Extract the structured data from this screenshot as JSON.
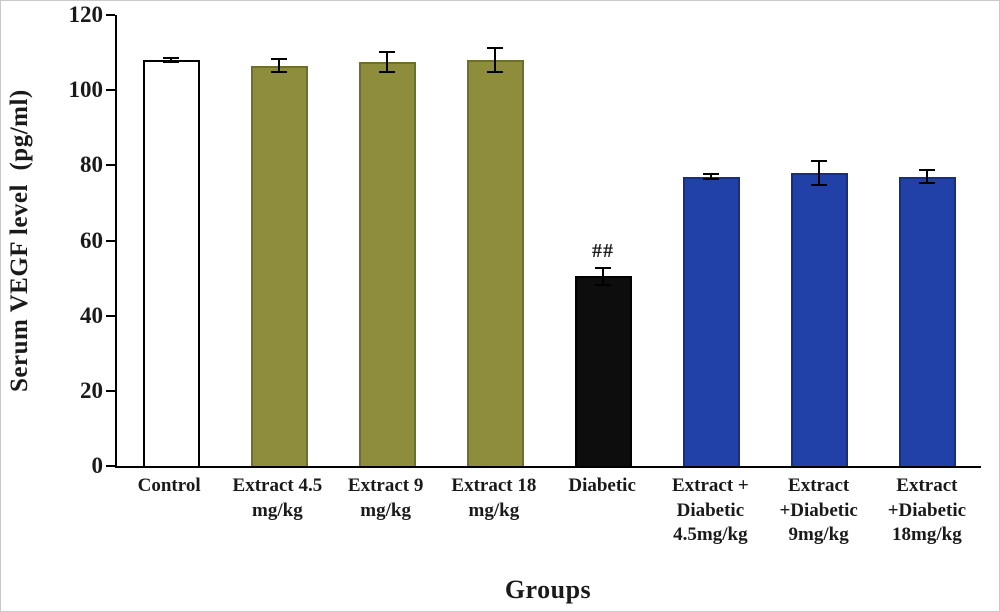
{
  "chart_data": {
    "type": "bar",
    "title": "",
    "xlabel": "Groups",
    "ylabel": "Serum VEGF level  (pg/ml)",
    "ylim": [
      0,
      120
    ],
    "yticks": [
      0,
      20,
      40,
      60,
      80,
      100,
      120
    ],
    "grid": false,
    "legend": "none",
    "categories": [
      [
        "Control"
      ],
      [
        "Extract 4.5",
        "mg/kg"
      ],
      [
        "Extract 9",
        "mg/kg"
      ],
      [
        "Extract 18",
        "mg/kg"
      ],
      [
        "Diabetic"
      ],
      [
        "Extract +",
        "Diabetic",
        "4.5mg/kg"
      ],
      [
        "Extract",
        "+Diabetic",
        "9mg/kg"
      ],
      [
        "Extract",
        "+Diabetic",
        "18mg/kg"
      ]
    ],
    "values": [
      108,
      106.5,
      107.5,
      108,
      50.5,
      77,
      78,
      77
    ],
    "errors": [
      0.8,
      2,
      3,
      3.5,
      2.5,
      1,
      3.5,
      2
    ],
    "bar_colors": [
      "#ffffff",
      "#8d8d3c",
      "#8d8d3c",
      "#8d8d3c",
      "#0d0d0d",
      "#2140a8",
      "#2140a8",
      "#2140a8"
    ],
    "bar_border_colors": [
      "#000000",
      "#6f6f2c",
      "#6f6f2c",
      "#6f6f2c",
      "#000000",
      "#152f82",
      "#152f82",
      "#152f82"
    ],
    "annotations": [
      {
        "category_index": 4,
        "text": "##"
      }
    ]
  }
}
